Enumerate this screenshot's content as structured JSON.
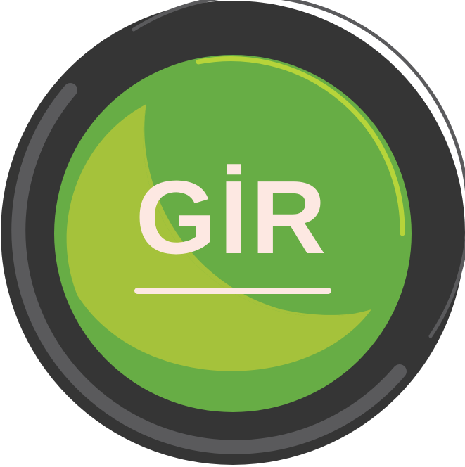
{
  "button": {
    "label": "GİR",
    "icon": "round-push-button-icon"
  },
  "colors": {
    "bezel": "#353535",
    "bezel_highlight": "#5a5a5c",
    "face": "#67ad45",
    "face_light": "#a5c23b",
    "face_rim_highlight": "#b6d43a",
    "text": "#fde8e2",
    "background": "#ffffff"
  }
}
